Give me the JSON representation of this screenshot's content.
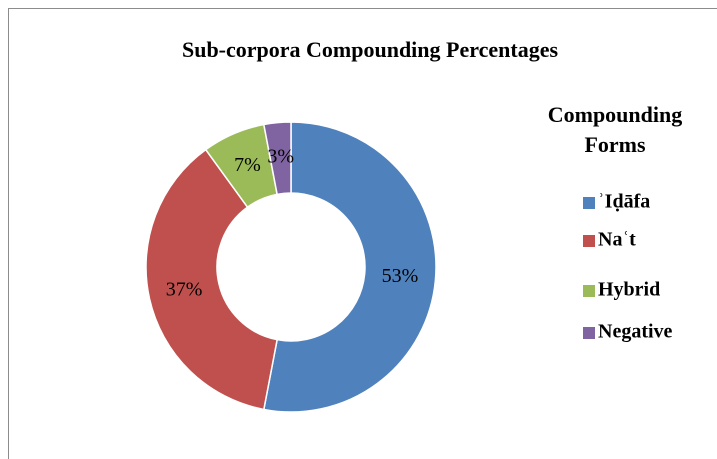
{
  "chart_data": {
    "type": "donut",
    "title": "Sub-corpora Compounding Percentages",
    "legend_title": "Compounding Forms",
    "categories": [
      "ʾIḍāfa",
      "Naʿt",
      "Hybrid",
      "Negative"
    ],
    "values": [
      53,
      37,
      7,
      3
    ],
    "value_labels": [
      "53%",
      "37%",
      "7%",
      "3%"
    ],
    "colors": [
      "#4f81bd",
      "#c0504d",
      "#9bbb59",
      "#8064a2"
    ],
    "legend": "right"
  }
}
